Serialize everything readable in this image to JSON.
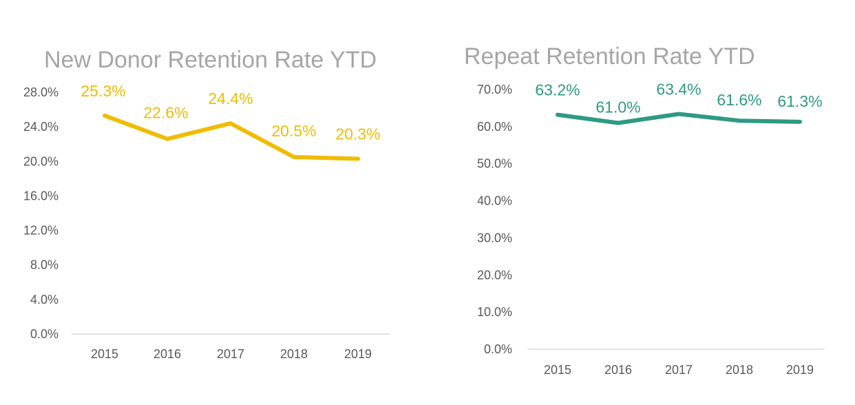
{
  "chart_data": [
    {
      "type": "line",
      "title": "New Donor Retention Rate YTD",
      "xlabel": "",
      "ylabel": "",
      "categories": [
        "2015",
        "2016",
        "2017",
        "2018",
        "2019"
      ],
      "values": [
        25.3,
        22.6,
        24.4,
        20.5,
        20.3
      ],
      "value_labels": [
        "25.3%",
        "22.6%",
        "24.4%",
        "20.5%",
        "20.3%"
      ],
      "ylim": [
        0,
        28
      ],
      "yticks": [
        0,
        4,
        8,
        12,
        16,
        20,
        24,
        28
      ],
      "ytick_labels": [
        "0.0%",
        "4.0%",
        "8.0%",
        "12.0%",
        "16.0%",
        "20.0%",
        "24.0%",
        "28.0%"
      ],
      "grid": false,
      "legend": "none",
      "color": "#f0bc00"
    },
    {
      "type": "line",
      "title": "Repeat Retention Rate YTD",
      "xlabel": "",
      "ylabel": "",
      "categories": [
        "2015",
        "2016",
        "2017",
        "2018",
        "2019"
      ],
      "values": [
        63.2,
        61.0,
        63.4,
        61.6,
        61.3
      ],
      "value_labels": [
        "63.2%",
        "61.0%",
        "63.4%",
        "61.6%",
        "61.3%"
      ],
      "ylim": [
        0,
        70
      ],
      "yticks": [
        0,
        10,
        20,
        30,
        40,
        50,
        60,
        70
      ],
      "ytick_labels": [
        "0.0%",
        "10.0%",
        "20.0%",
        "30.0%",
        "40.0%",
        "50.0%",
        "60.0%",
        "70.0%"
      ],
      "grid": false,
      "legend": "none",
      "color": "#2e9a84"
    }
  ]
}
